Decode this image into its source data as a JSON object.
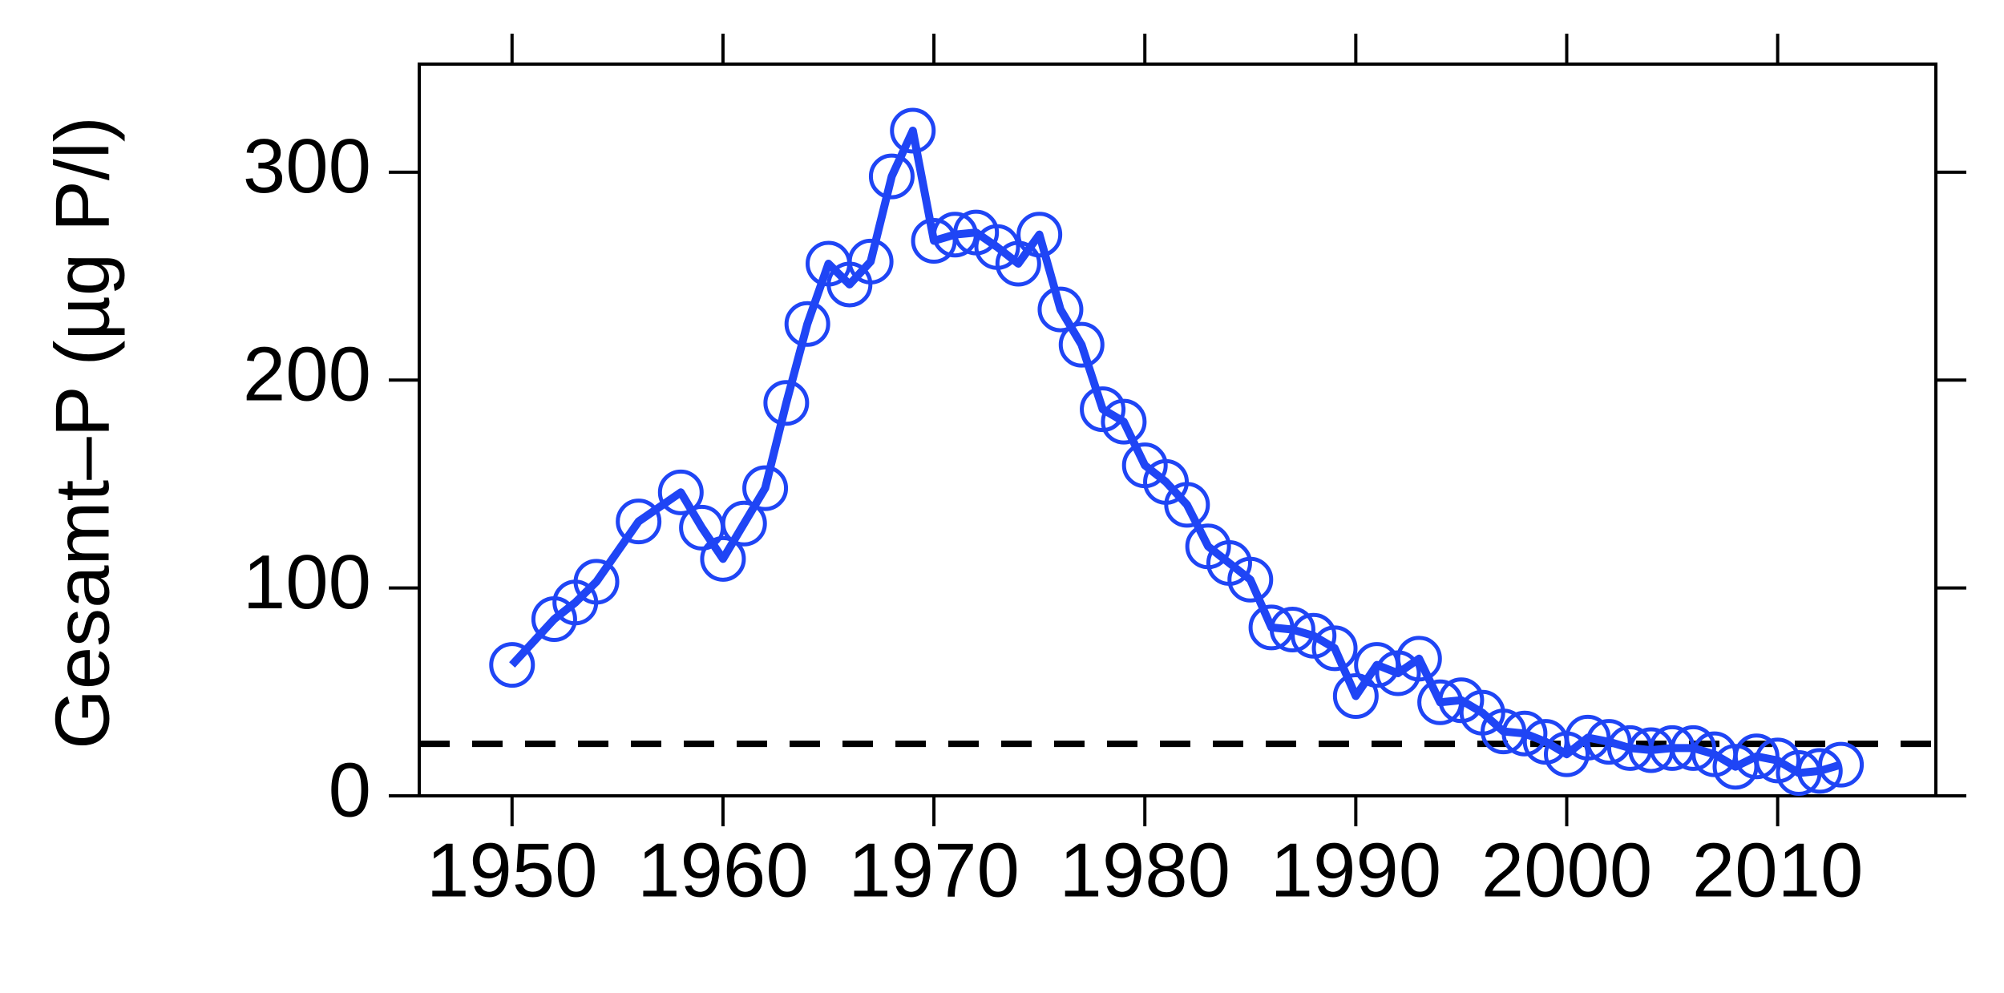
{
  "chart_data": {
    "type": "line",
    "y_label": "Gesamt–P (µg P/l)",
    "x": [
      1950,
      1952,
      1953,
      1954,
      1956,
      1958,
      1959,
      1960,
      1961,
      1962,
      1963,
      1964,
      1965,
      1966,
      1967,
      1968,
      1969,
      1970,
      1971,
      1972,
      1973,
      1974,
      1975,
      1976,
      1977,
      1978,
      1979,
      1980,
      1981,
      1982,
      1983,
      1984,
      1985,
      1986,
      1987,
      1988,
      1989,
      1990,
      1991,
      1992,
      1993,
      1994,
      1995,
      1996,
      1997,
      1998,
      1999,
      2000,
      2001,
      2002,
      2003,
      2004,
      2005,
      2006,
      2007,
      2008,
      2009,
      2010,
      2011,
      2012,
      2013
    ],
    "series": [
      {
        "color": "#1f45f5",
        "values": [
          63,
          85,
          93,
          103,
          132,
          146,
          129,
          114,
          131,
          148,
          189,
          227,
          256,
          246,
          257,
          298,
          320,
          267,
          270,
          271,
          264,
          256,
          270,
          234,
          217,
          186,
          180,
          159,
          151,
          140,
          120,
          112,
          104,
          81,
          80,
          77,
          71,
          48,
          63,
          59,
          66,
          45,
          46,
          40,
          31,
          30,
          26,
          20,
          28,
          26,
          23,
          22,
          23,
          23,
          20,
          14,
          19,
          17,
          11,
          12,
          15
        ]
      }
    ],
    "reference_line": 25,
    "xlim": [
      1945.6,
      2017.5
    ],
    "xticks": [
      1950,
      1960,
      1970,
      1980,
      1990,
      2000,
      2010
    ],
    "ylim": [
      0,
      352
    ],
    "yticks": [
      0,
      100,
      200,
      300
    ]
  }
}
